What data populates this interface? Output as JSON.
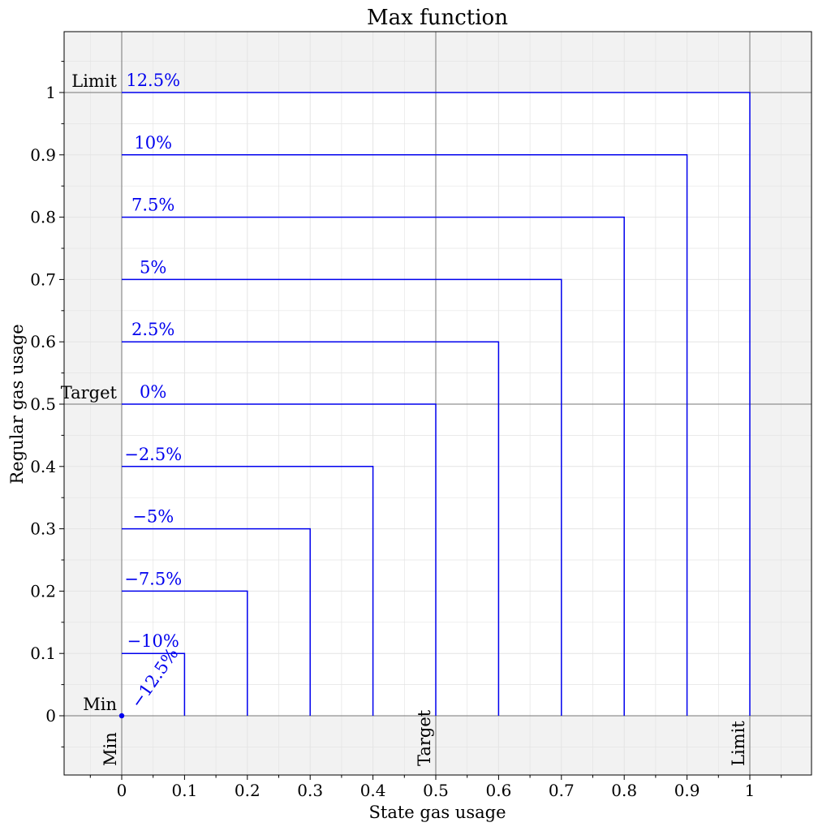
{
  "chart_data": {
    "type": "line",
    "title": "Max function",
    "xlabel": "State gas usage",
    "ylabel": "Regular gas usage",
    "xlim": [
      -0.093,
      1.1
    ],
    "ylim": [
      -0.093,
      1.1
    ],
    "grid": true,
    "x_ticks": [
      {
        "value": 0,
        "label": "0"
      },
      {
        "value": 0.1,
        "label": "0.1"
      },
      {
        "value": 0.2,
        "label": "0.2"
      },
      {
        "value": 0.3,
        "label": "0.3"
      },
      {
        "value": 0.4,
        "label": "0.4"
      },
      {
        "value": 0.5,
        "label": "0.5"
      },
      {
        "value": 0.6,
        "label": "0.6"
      },
      {
        "value": 0.7,
        "label": "0.7"
      },
      {
        "value": 0.8,
        "label": "0.8"
      },
      {
        "value": 0.9,
        "label": "0.9"
      },
      {
        "value": 1,
        "label": "1"
      }
    ],
    "y_ticks": [
      {
        "value": 0,
        "label": "0"
      },
      {
        "value": 0.1,
        "label": "0.1"
      },
      {
        "value": 0.2,
        "label": "0.2"
      },
      {
        "value": 0.3,
        "label": "0.3"
      },
      {
        "value": 0.4,
        "label": "0.4"
      },
      {
        "value": 0.5,
        "label": "0.5"
      },
      {
        "value": 0.6,
        "label": "0.6"
      },
      {
        "value": 0.7,
        "label": "0.7"
      },
      {
        "value": 0.8,
        "label": "0.8"
      },
      {
        "value": 0.9,
        "label": "0.9"
      },
      {
        "value": 1,
        "label": "1"
      }
    ],
    "reference_lines": {
      "x": [
        {
          "value": 0,
          "label": "Min"
        },
        {
          "value": 0.5,
          "label": "Target"
        },
        {
          "value": 1,
          "label": "Limit"
        }
      ],
      "y": [
        {
          "value": 0,
          "label": "Min"
        },
        {
          "value": 0.5,
          "label": "Target"
        },
        {
          "value": 1,
          "label": "Limit"
        }
      ]
    },
    "series": [
      {
        "label": "12.5%",
        "level": 1.0
      },
      {
        "label": "10%",
        "level": 0.9
      },
      {
        "label": "7.5%",
        "level": 0.8
      },
      {
        "label": "5%",
        "level": 0.7
      },
      {
        "label": "2.5%",
        "level": 0.6
      },
      {
        "label": "0%",
        "level": 0.5
      },
      {
        "label": "−2.5%",
        "level": 0.4
      },
      {
        "label": "−5%",
        "level": 0.3
      },
      {
        "label": "−7.5%",
        "level": 0.2
      },
      {
        "label": "−10%",
        "level": 0.1
      },
      {
        "label": "−12.5%",
        "level": 0.0
      }
    ],
    "colors": {
      "series": "#0000ee",
      "outside_fill": "#f2f2f2",
      "reference": "#777777",
      "grid": "#e4e4e4"
    }
  }
}
